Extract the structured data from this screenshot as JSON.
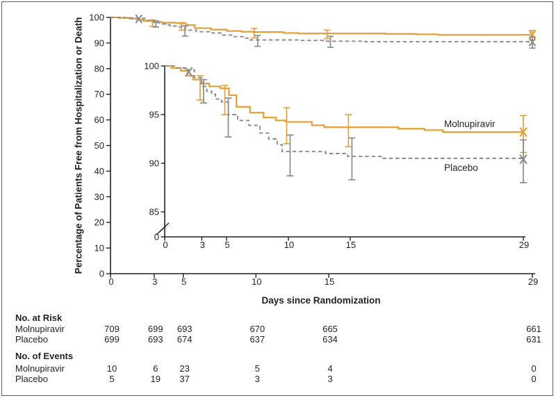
{
  "chart_data": {
    "type": "line",
    "subtype": "kaplan_meier_step",
    "title": "",
    "xlabel": "Days since Randomization",
    "ylabel": "Percentage of Patients Free from Hospitalization or Death",
    "x_ticks": [
      0,
      3,
      5,
      10,
      15,
      29
    ],
    "x_max": 29,
    "main_plot": {
      "ylim": [
        0,
        100
      ],
      "y_ticks": [
        100,
        90,
        80,
        70,
        60,
        50,
        40,
        30,
        20,
        10,
        0
      ],
      "grid": false
    },
    "inset_plot": {
      "ylim": [
        85,
        100
      ],
      "y_ticks": [
        100,
        95,
        90,
        85
      ],
      "baseline_tick": 0,
      "axis_break": true
    },
    "legend_position": "right-of-curves",
    "series": [
      {
        "name": "Molnupiravir",
        "color": "#E2A33E",
        "line_style": "solid",
        "steps": [
          [
            0,
            100
          ],
          [
            0.55,
            99.8
          ],
          [
            1.3,
            99.5
          ],
          [
            1.85,
            99.0
          ],
          [
            2.3,
            98.6
          ],
          [
            2.9,
            98.2
          ],
          [
            3.6,
            97.9
          ],
          [
            4.5,
            97.7
          ],
          [
            5.2,
            97.0
          ],
          [
            5.8,
            95.8
          ],
          [
            6.9,
            95.2
          ],
          [
            8.0,
            94.7
          ],
          [
            9.0,
            94.4
          ],
          [
            9.8,
            94.25
          ],
          [
            11.9,
            93.9
          ],
          [
            12.9,
            93.7
          ],
          [
            18.9,
            93.55
          ],
          [
            21,
            93.4
          ],
          [
            22.5,
            93.2
          ],
          [
            29,
            93.2
          ]
        ],
        "censored": [
          [
            29,
            93.2
          ]
        ],
        "error_bars": [
          {
            "day": 3,
            "low": 96.5,
            "high": 99.0
          },
          {
            "day": 5,
            "low": 95.0,
            "high": 98.0
          },
          {
            "day": 10,
            "low": 92.0,
            "high": 95.7
          },
          {
            "day": 15,
            "low": 91.7,
            "high": 95.0
          },
          {
            "day": 29,
            "low": 91.1,
            "high": 94.9
          }
        ]
      },
      {
        "name": "Placebo",
        "color": "#8B8B8B",
        "line_style": "dashed",
        "steps": [
          [
            0,
            100
          ],
          [
            0.95,
            99.8
          ],
          [
            1.6,
            99.6
          ],
          [
            2.4,
            98.8
          ],
          [
            3.0,
            97.9
          ],
          [
            3.4,
            97.4
          ],
          [
            3.8,
            97.1
          ],
          [
            4.1,
            96.6
          ],
          [
            4.6,
            96.3
          ],
          [
            5.15,
            95.0
          ],
          [
            5.9,
            94.4
          ],
          [
            6.8,
            93.9
          ],
          [
            7.7,
            93.1
          ],
          [
            8.4,
            92.5
          ],
          [
            9.1,
            91.9
          ],
          [
            9.5,
            91.2
          ],
          [
            13,
            91.0
          ],
          [
            14.8,
            90.7
          ],
          [
            17.5,
            90.5
          ],
          [
            29,
            90.4
          ]
        ],
        "censored": [
          [
            1.95,
            99.4
          ],
          [
            29,
            90.4
          ]
        ],
        "error_bars": [
          {
            "day": 3,
            "low": 96.2,
            "high": 98.6
          },
          {
            "day": 5,
            "low": 92.7,
            "high": 96.7
          },
          {
            "day": 10,
            "low": 88.7,
            "high": 92.9
          },
          {
            "day": 15,
            "low": 88.3,
            "high": 92.6
          },
          {
            "day": 29,
            "low": 88.0,
            "high": 92.4
          }
        ]
      }
    ]
  },
  "tables": {
    "at_risk": {
      "title": "No. at Risk",
      "rows": [
        {
          "label": "Molnupiravir",
          "values": [
            709,
            699,
            693,
            670,
            665,
            661
          ]
        },
        {
          "label": "Placebo",
          "values": [
            699,
            693,
            674,
            637,
            634,
            631
          ]
        }
      ]
    },
    "events": {
      "title": "No. of Events",
      "rows": [
        {
          "label": "Molnupiravir",
          "values": [
            10,
            6,
            23,
            5,
            4,
            0
          ]
        },
        {
          "label": "Placebo",
          "values": [
            5,
            19,
            37,
            3,
            3,
            0
          ]
        }
      ]
    }
  },
  "colors": {
    "molnupiravir": "#E2A33E",
    "placebo": "#8B8B8B",
    "axis": "#231F20",
    "frame": "#595A5C"
  }
}
